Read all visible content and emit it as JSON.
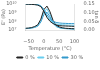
{
  "chart_data": {
    "type": "line",
    "xlabel": "Temperature (°C)",
    "ylabel": "E' (Pa)",
    "y2label": "tan δ",
    "x": [
      -60,
      -50,
      -40,
      -30,
      -20,
      -10,
      0,
      10,
      20,
      30,
      40,
      50,
      60,
      70,
      80,
      90,
      100
    ],
    "xlim": [
      -60,
      100
    ],
    "xticks": [
      {
        "value": -50,
        "label": "−50"
      },
      0,
      50,
      100
    ],
    "ylim": [
      10000000.0,
      10000000000.0
    ],
    "yticks": [
      {
        "value": 10000000.0,
        "label": "10⁷"
      },
      {
        "value": 100000000.0,
        "label": "10⁸"
      },
      {
        "value": 1000000000.0,
        "label": "10⁹"
      },
      {
        "value": 10000000000.0,
        "label": "10¹⁰"
      }
    ],
    "y2lim": [
      0,
      0.15
    ],
    "y2ticks": [
      {
        "value": 0,
        "label": "0.00"
      },
      0.05,
      {
        "value": 0.1,
        "label": "0.10"
      },
      0.15
    ],
    "log": "y",
    "grid": false,
    "legend": "bottom",
    "series": [
      {
        "name": "0 %",
        "color": "#222222",
        "values": [
          9500000000.0,
          9300000000.0,
          9000000000.0,
          8500000000.0,
          7500000000.0,
          5000000000.0,
          1500000000.0,
          280000000.0,
          100000000.0,
          55000000.0,
          38000000.0,
          32000000.0,
          30000000.0,
          29000000.0,
          28000000.0,
          27000000.0,
          26000000.0
        ]
      },
      {
        "name": "10 %",
        "color": "#66ccee",
        "values": [
          9700000000.0,
          9500000000.0,
          9300000000.0,
          8800000000.0,
          7900000000.0,
          5500000000.0,
          1900000000.0,
          380000000.0,
          140000000.0,
          70000000.0,
          50000000.0,
          43000000.0,
          40000000.0,
          38000000.0,
          37000000.0,
          36000000.0,
          35000000.0
        ]
      },
      {
        "name": "30 %",
        "color": "#3399cc",
        "values": [
          10000000000.0,
          9800000000.0,
          9600000000.0,
          9200000000.0,
          8400000000.0,
          6200000000.0,
          2500000000.0,
          550000000.0,
          200000000.0,
          100000000.0,
          75000000.0,
          65000000.0,
          60000000.0,
          58000000.0,
          56000000.0,
          55000000.0,
          54000000.0
        ]
      },
      {
        "color": "#222222",
        "axis": "y2",
        "values": [
          0.01,
          0.011,
          0.014,
          0.02,
          0.03,
          0.062,
          0.118,
          0.138,
          0.105,
          0.055,
          0.028,
          0.018,
          0.013,
          0.01,
          0.009,
          0.008,
          0.007
        ]
      },
      {
        "color": "#66ccee",
        "axis": "y2",
        "values": [
          0.009,
          0.01,
          0.013,
          0.017,
          0.026,
          0.055,
          0.105,
          0.122,
          0.09,
          0.048,
          0.025,
          0.016,
          0.011,
          0.009,
          0.008,
          0.007,
          0.006
        ]
      },
      {
        "color": "#3399cc",
        "axis": "y2",
        "values": [
          0.008,
          0.009,
          0.011,
          0.015,
          0.022,
          0.046,
          0.09,
          0.103,
          0.076,
          0.04,
          0.02,
          0.013,
          0.009,
          0.008,
          0.007,
          0.006,
          0.005
        ]
      }
    ]
  }
}
